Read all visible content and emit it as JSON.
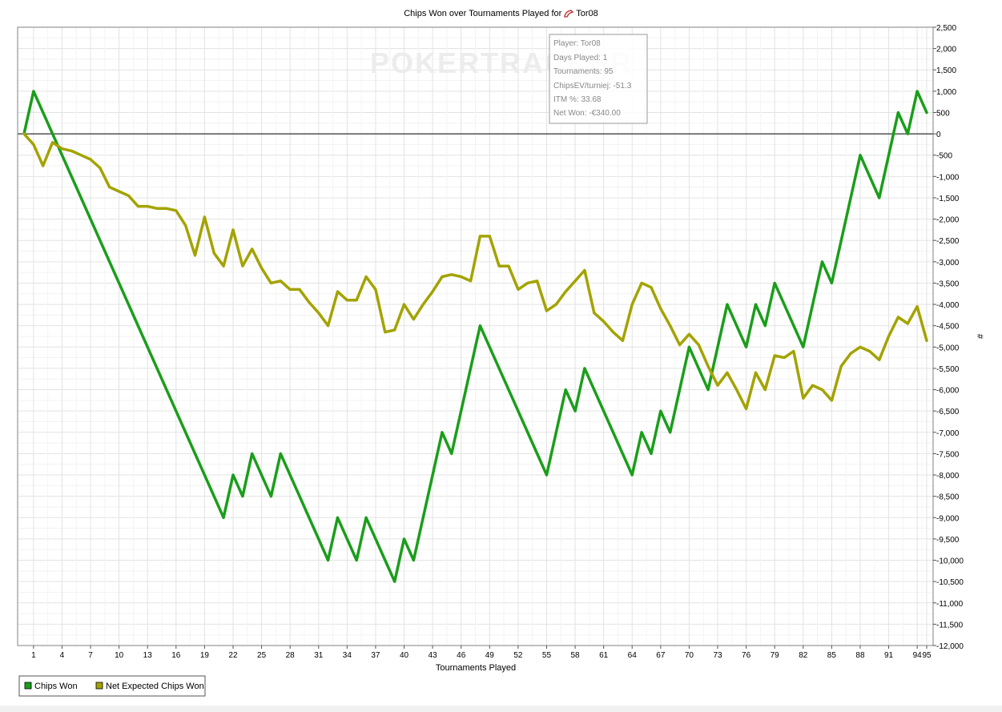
{
  "chart_data": {
    "type": "line",
    "title": "Chips Won over Tournaments Played for",
    "player": "Tor08",
    "xlabel": "Tournaments Played",
    "ylabel": "#",
    "ylim": [
      -12000,
      2500
    ],
    "xlim": [
      0,
      96
    ],
    "y_ticks": [
      2500,
      2000,
      1500,
      1000,
      500,
      0,
      -500,
      -1000,
      -1500,
      -2000,
      -2500,
      -3000,
      -3500,
      -4000,
      -4500,
      -5000,
      -5500,
      -6000,
      -6500,
      -7000,
      -7500,
      -8000,
      -8500,
      -9000,
      -9500,
      -10000,
      -10500,
      -11000,
      -11500,
      -12000
    ],
    "y_tick_labels": [
      "2,500",
      "2,000",
      "1,500",
      "1,000",
      "500",
      "0",
      "-500",
      "-1,000",
      "-1,500",
      "-2,000",
      "-2,500",
      "-3,000",
      "-3,500",
      "-4,000",
      "-4,500",
      "-5,000",
      "-5,500",
      "-6,000",
      "-6,500",
      "-7,000",
      "-7,500",
      "-8,000",
      "-8,500",
      "-9,000",
      "-9,500",
      "-10,000",
      "-10,500",
      "-11,000",
      "-11,500",
      "-12,000"
    ],
    "x_ticks": [
      1,
      4,
      7,
      10,
      13,
      16,
      19,
      22,
      25,
      28,
      31,
      34,
      37,
      40,
      43,
      46,
      49,
      52,
      55,
      58,
      61,
      64,
      67,
      70,
      73,
      76,
      79,
      82,
      85,
      88,
      91,
      94,
      95
    ],
    "x_tick_labels": [
      "1",
      "4",
      "7",
      "10",
      "13",
      "16",
      "19",
      "22",
      "25",
      "28",
      "31",
      "34",
      "37",
      "40",
      "43",
      "46",
      "49",
      "52",
      "55",
      "58",
      "61",
      "64",
      "67",
      "70",
      "73",
      "76",
      "79",
      "82",
      "85",
      "88",
      "91",
      "94",
      "95"
    ],
    "grid": true,
    "legend_position": "bottom-left",
    "series": [
      {
        "name": "Chips Won",
        "color": "#1a9e1a",
        "x": [
          0,
          1,
          21,
          22,
          23,
          24,
          26,
          27,
          32,
          33,
          35,
          36,
          39,
          40,
          41,
          44,
          45,
          48,
          55,
          57,
          58,
          59,
          64,
          65,
          66,
          67,
          68,
          70,
          72,
          74,
          76,
          77,
          78,
          79,
          82,
          84,
          85,
          88,
          90,
          92,
          93,
          94,
          95
        ],
        "y": [
          0,
          1000,
          -9000,
          -8000,
          -8500,
          -7500,
          -8500,
          -7500,
          -10000,
          -9000,
          -10000,
          -9000,
          -10500,
          -9500,
          -10000,
          -7000,
          -7500,
          -4500,
          -8000,
          -6000,
          -6500,
          -5500,
          -8000,
          -7000,
          -7500,
          -6500,
          -7000,
          -5000,
          -6000,
          -4000,
          -5000,
          -4000,
          -4500,
          -3500,
          -5000,
          -3000,
          -3500,
          -500,
          -1500,
          500,
          0,
          1000,
          500
        ]
      },
      {
        "name": "Net Expected Chips Won",
        "color": "#a3a300",
        "x": [
          0,
          1,
          2,
          3,
          4,
          5,
          6,
          7,
          8,
          9,
          10,
          11,
          12,
          13,
          14,
          15,
          16,
          17,
          18,
          19,
          20,
          21,
          22,
          23,
          24,
          25,
          26,
          27,
          28,
          29,
          30,
          31,
          32,
          33,
          34,
          35,
          36,
          37,
          38,
          39,
          40,
          41,
          42,
          43,
          44,
          45,
          46,
          47,
          48,
          49,
          50,
          51,
          52,
          53,
          54,
          55,
          56,
          57,
          58,
          59,
          60,
          61,
          62,
          63,
          64,
          65,
          66,
          67,
          68,
          69,
          70,
          71,
          72,
          73,
          74,
          75,
          76,
          77,
          78,
          79,
          80,
          81,
          82,
          83,
          84,
          85,
          86,
          87,
          88,
          89,
          90,
          91,
          92,
          93,
          94,
          95
        ],
        "y": [
          0,
          -250,
          -750,
          -200,
          -350,
          -400,
          -500,
          -600,
          -800,
          -1250,
          -1350,
          -1450,
          -1700,
          -1700,
          -1750,
          -1750,
          -1800,
          -2150,
          -2850,
          -1950,
          -2800,
          -3100,
          -2250,
          -3100,
          -2700,
          -3150,
          -3500,
          -3450,
          -3650,
          -3650,
          -3950,
          -4200,
          -4500,
          -3700,
          -3900,
          -3900,
          -3350,
          -3650,
          -4650,
          -4600,
          -4000,
          -4350,
          -4000,
          -3700,
          -3350,
          -3300,
          -3350,
          -3450,
          -2400,
          -2400,
          -3100,
          -3100,
          -3650,
          -3500,
          -3450,
          -4150,
          -4000,
          -3700,
          -3450,
          -3200,
          -4200,
          -4400,
          -4650,
          -4850,
          -4000,
          -3500,
          -3600,
          -4100,
          -4500,
          -4950,
          -4700,
          -4950,
          -5450,
          -5900,
          -5600,
          -6000,
          -6450,
          -5600,
          -6000,
          -5200,
          -5250,
          -5100,
          -6200,
          -5900,
          -6000,
          -6250,
          -5450,
          -5150,
          -5000,
          -5100,
          -5300,
          -4750,
          -4300,
          -4450,
          -4050,
          -4850
        ]
      }
    ]
  },
  "tooltip": {
    "player": "Player: Tor08",
    "days_played": "Days Played: 1",
    "tournaments": "Tournaments: 95",
    "chipsev": "ChipsEV/turniej: -51.3",
    "itm": "ITM %: 33.68",
    "net_won": "Net Won: -€340.00"
  },
  "watermark": "POKERTRACKER"
}
